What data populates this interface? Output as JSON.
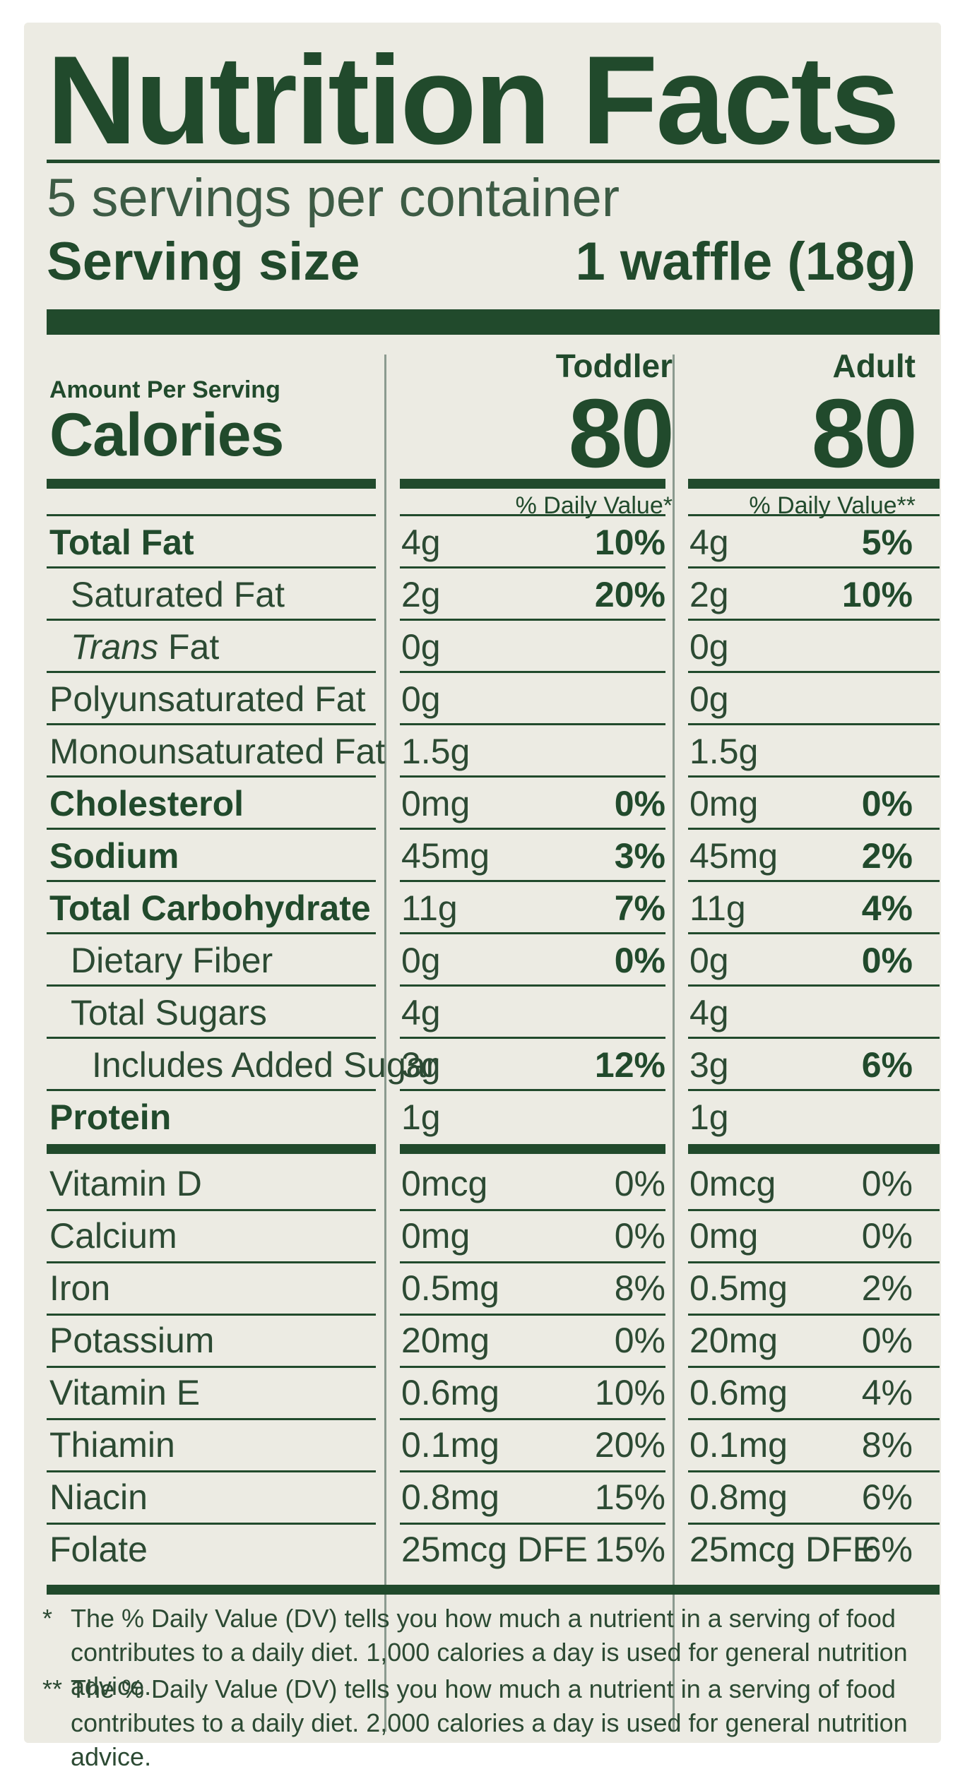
{
  "title": "Nutrition Facts",
  "servings_per_container": "5 servings per container",
  "serving_size_label": "Serving size",
  "serving_size_value": "1 waffle (18g)",
  "amount_per_serving": "Amount Per Serving",
  "calories_label": "Calories",
  "columns": [
    {
      "name": "Toddler",
      "calories": "80",
      "dv_header": "% Daily Value*"
    },
    {
      "name": "Adult",
      "calories": "80",
      "dv_header": "% Daily Value**"
    }
  ],
  "nutrients": [
    {
      "label": "Total Fat",
      "bold": true,
      "indent": 0,
      "toddler_amount": "4g",
      "toddler_dv": "10%",
      "adult_amount": "4g",
      "adult_dv": "5%"
    },
    {
      "label": "Saturated Fat",
      "bold": false,
      "indent": 1,
      "toddler_amount": "2g",
      "toddler_dv": "20%",
      "adult_amount": "2g",
      "adult_dv": "10%"
    },
    {
      "label_italic": "Trans",
      "label": " Fat",
      "bold": false,
      "indent": 1,
      "toddler_amount": "0g",
      "toddler_dv": "",
      "adult_amount": "0g",
      "adult_dv": ""
    },
    {
      "label": "Polyunsaturated Fat",
      "bold": false,
      "indent": 0,
      "toddler_amount": "0g",
      "toddler_dv": "",
      "adult_amount": "0g",
      "adult_dv": ""
    },
    {
      "label": "Monounsaturated Fat",
      "bold": false,
      "indent": 0,
      "toddler_amount": "1.5g",
      "toddler_dv": "",
      "adult_amount": "1.5g",
      "adult_dv": ""
    },
    {
      "label": "Cholesterol",
      "bold": true,
      "indent": 0,
      "toddler_amount": "0mg",
      "toddler_dv": "0%",
      "adult_amount": "0mg",
      "adult_dv": "0%"
    },
    {
      "label": "Sodium",
      "bold": true,
      "indent": 0,
      "toddler_amount": "45mg",
      "toddler_dv": "3%",
      "adult_amount": "45mg",
      "adult_dv": "2%"
    },
    {
      "label": "Total Carbohydrate",
      "bold": true,
      "indent": 0,
      "toddler_amount": "11g",
      "toddler_dv": "7%",
      "adult_amount": "11g",
      "adult_dv": "4%"
    },
    {
      "label": "Dietary Fiber",
      "bold": false,
      "indent": 1,
      "toddler_amount": "0g",
      "toddler_dv": "0%",
      "adult_amount": "0g",
      "adult_dv": "0%"
    },
    {
      "label": "Total Sugars",
      "bold": false,
      "indent": 1,
      "toddler_amount": "4g",
      "toddler_dv": "",
      "adult_amount": "4g",
      "adult_dv": ""
    },
    {
      "label": "Includes Added Sugar",
      "bold": false,
      "indent": 2,
      "toddler_amount": "3g",
      "toddler_dv": "12%",
      "adult_amount": "3g",
      "adult_dv": "6%"
    },
    {
      "label": "Protein",
      "bold": true,
      "indent": 0,
      "toddler_amount": "1g",
      "toddler_dv": "",
      "adult_amount": "1g",
      "adult_dv": ""
    }
  ],
  "vitamins": [
    {
      "label": "Vitamin D",
      "toddler_amount": "0mcg",
      "toddler_dv": "0%",
      "adult_amount": "0mcg",
      "adult_dv": "0%"
    },
    {
      "label": "Calcium",
      "toddler_amount": "0mg",
      "toddler_dv": "0%",
      "adult_amount": "0mg",
      "adult_dv": "0%"
    },
    {
      "label": "Iron",
      "toddler_amount": "0.5mg",
      "toddler_dv": "8%",
      "adult_amount": "0.5mg",
      "adult_dv": "2%"
    },
    {
      "label": "Potassium",
      "toddler_amount": "20mg",
      "toddler_dv": "0%",
      "adult_amount": "20mg",
      "adult_dv": "0%"
    },
    {
      "label": "Vitamin E",
      "toddler_amount": "0.6mg",
      "toddler_dv": "10%",
      "adult_amount": "0.6mg",
      "adult_dv": "4%"
    },
    {
      "label": "Thiamin",
      "toddler_amount": "0.1mg",
      "toddler_dv": "20%",
      "adult_amount": "0.1mg",
      "adult_dv": "8%"
    },
    {
      "label": "Niacin",
      "toddler_amount": "0.8mg",
      "toddler_dv": "15%",
      "adult_amount": "0.8mg",
      "adult_dv": "6%"
    },
    {
      "label": "Folate",
      "toddler_amount": "25mcg DFE",
      "toddler_dv": "15%",
      "adult_amount": "25mcg DFE",
      "adult_dv": "6%"
    }
  ],
  "footnotes": [
    {
      "mark": "*",
      "line1": "The % Daily Value (DV) tells you how much a nutrient in a serving of food",
      "line2": "contributes to a daily diet. 1,000 calories a day is used for general nutrition advice."
    },
    {
      "mark": "**",
      "line1": "The % Daily Value (DV) tells you how much a nutrient in a serving of food",
      "line2": "contributes to a daily diet. 2,000 calories a day is used for general nutrition advice."
    }
  ],
  "colors": {
    "ink": "#214a2c",
    "background": "#ecebe3"
  }
}
